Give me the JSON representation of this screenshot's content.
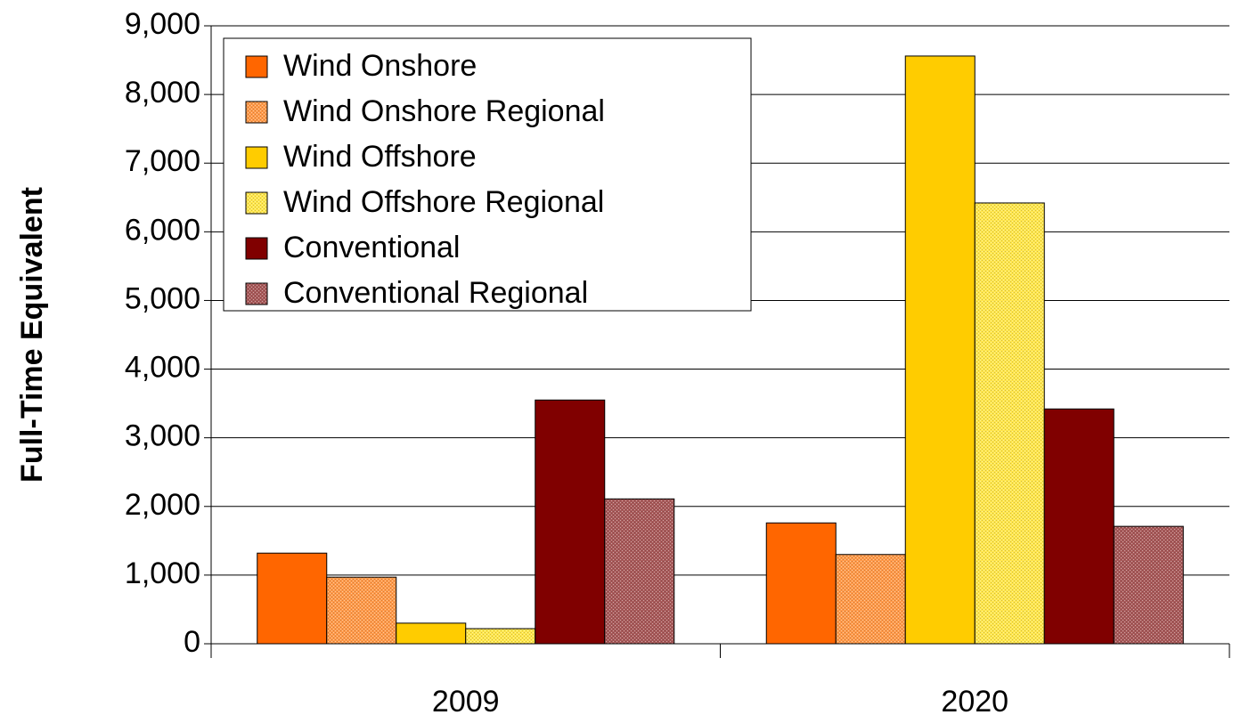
{
  "chart_data": {
    "type": "bar",
    "y_label": "Full-Time Equivalent",
    "categories": [
      "2009",
      "2020"
    ],
    "series": [
      {
        "name": "Wind Onshore",
        "color": "#ff6600",
        "values": [
          1320,
          1760
        ]
      },
      {
        "name": "Wind Onshore Regional",
        "color": "#ff9a4a",
        "hatch": true,
        "values": [
          970,
          1300
        ]
      },
      {
        "name": "Wind Offshore",
        "color": "#ffcc00",
        "values": [
          300,
          8560
        ]
      },
      {
        "name": "Wind Offshore Regional",
        "color": "#ffe64d",
        "hatch": true,
        "values": [
          220,
          6420
        ]
      },
      {
        "name": "Conventional",
        "color": "#800000",
        "values": [
          3550,
          3420
        ]
      },
      {
        "name": "Conventional Regional",
        "color": "#a85a5a",
        "hatch": true,
        "values": [
          2110,
          1710
        ]
      }
    ],
    "ylim": [
      0,
      9000
    ],
    "yticks": [
      0,
      {
        "value": 1000,
        "label": "1,000"
      },
      {
        "value": 2000,
        "label": "2,000"
      },
      {
        "value": 3000,
        "label": "3,000"
      },
      {
        "value": 4000,
        "label": "4,000"
      },
      {
        "value": 5000,
        "label": "5,000"
      },
      {
        "value": 6000,
        "label": "6,000"
      },
      {
        "value": 7000,
        "label": "7,000"
      },
      {
        "value": 8000,
        "label": "8,000"
      },
      {
        "value": 9000,
        "label": "9,000"
      }
    ],
    "grid": true,
    "legend": "upper left"
  }
}
